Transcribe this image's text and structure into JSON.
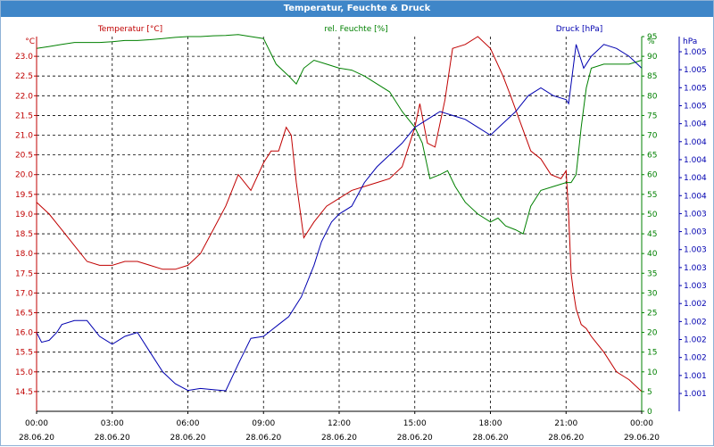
{
  "window": {
    "title": "Temperatur, Feuchte & Druck"
  },
  "chart_data": {
    "type": "line",
    "title": "Temperatur, Feuchte & Druck",
    "colors": {
      "temperature": "#c00000",
      "humidity": "#008000",
      "pressure": "#0000b0",
      "titlebar": "#3f86c8"
    },
    "grid": true,
    "x_ticks": [
      {
        "time": "00:00",
        "date": "28.06.20"
      },
      {
        "time": "03:00",
        "date": "28.06.20"
      },
      {
        "time": "06:00",
        "date": "28.06.20"
      },
      {
        "time": "09:00",
        "date": "28.06.20"
      },
      {
        "time": "12:00",
        "date": "28.06.20"
      },
      {
        "time": "15:00",
        "date": "28.06.20"
      },
      {
        "time": "18:00",
        "date": "28.06.20"
      },
      {
        "time": "21:00",
        "date": "28.06.20"
      },
      {
        "time": "00:00",
        "date": "29.06.20"
      }
    ],
    "x_range_hours": [
      0,
      24
    ],
    "axes": {
      "temperature": {
        "label": "Temperatur [°C]",
        "unit": "°C",
        "range": [
          14.0,
          23.5
        ],
        "ticks": [
          "14.5",
          "15.0",
          "15.5",
          "16.0",
          "16.5",
          "17.0",
          "17.5",
          "18.0",
          "18.5",
          "19.0",
          "19.5",
          "20.0",
          "20.5",
          "21.0",
          "21.5",
          "22.0",
          "22.5",
          "23.0"
        ]
      },
      "humidity": {
        "label": "rel. Feuchte [%]",
        "unit": "%",
        "range": [
          0,
          95
        ],
        "ticks": [
          "0",
          "5",
          "10",
          "15",
          "20",
          "25",
          "30",
          "35",
          "40",
          "45",
          "50",
          "55",
          "60",
          "65",
          "70",
          "75",
          "80",
          "85",
          "90",
          "95"
        ]
      },
      "pressure": {
        "label": "Druck [hPa]",
        "unit": "hPa",
        "ticks": [
          "1.005",
          "1.005",
          "1.005",
          "1.005",
          "1.004",
          "1.004",
          "1.004",
          "1.004",
          "1.004",
          "1.003",
          "1.003",
          "1.003",
          "1.003",
          "1.003",
          "1.002",
          "1.002",
          "1.002",
          "1.002",
          "1.001",
          "1.001"
        ]
      }
    },
    "series": [
      {
        "name": "Temperatur [°C]",
        "axis": "temperature",
        "x": [
          0,
          0.5,
          1,
          1.5,
          2,
          2.5,
          3,
          3.5,
          4,
          4.5,
          5,
          5.5,
          6,
          6.5,
          7,
          7.5,
          8,
          8.5,
          9,
          9.3,
          9.6,
          9.9,
          10.1,
          10.3,
          10.6,
          11,
          11.5,
          12,
          12.5,
          13,
          13.5,
          14,
          14.5,
          15,
          15.2,
          15.5,
          15.8,
          16.2,
          16.5,
          17,
          17.5,
          18,
          18.5,
          18.8,
          19.2,
          19.6,
          20,
          20.4,
          20.8,
          21,
          21.1,
          21.2,
          21.3,
          21.4,
          21.6,
          21.8,
          22,
          22.5,
          23,
          23.5,
          24
        ],
        "values": [
          19.3,
          19.0,
          18.6,
          18.2,
          17.8,
          17.7,
          17.7,
          17.8,
          17.8,
          17.7,
          17.6,
          17.6,
          17.7,
          18.0,
          18.6,
          19.2,
          20.0,
          19.6,
          20.3,
          20.6,
          20.6,
          21.2,
          21.0,
          19.8,
          18.4,
          18.8,
          19.2,
          19.4,
          19.6,
          19.7,
          19.8,
          19.9,
          20.2,
          21.2,
          21.8,
          20.8,
          20.7,
          21.9,
          23.2,
          23.3,
          23.5,
          23.2,
          22.5,
          22.0,
          21.3,
          20.6,
          20.4,
          20.0,
          19.9,
          20.1,
          19.0,
          17.5,
          17.0,
          16.6,
          16.2,
          16.1,
          15.9,
          15.5,
          15.0,
          14.8,
          14.5
        ]
      },
      {
        "name": "rel. Feuchte [%]",
        "axis": "humidity",
        "x": [
          0,
          0.5,
          1,
          1.5,
          2,
          2.5,
          3,
          3.5,
          4,
          4.5,
          5,
          5.5,
          6,
          6.5,
          7,
          7.5,
          8,
          8.5,
          9,
          9.5,
          10,
          10.3,
          10.6,
          11,
          11.5,
          12,
          12.5,
          13,
          13.5,
          14,
          14.5,
          15,
          15.3,
          15.6,
          16,
          16.3,
          16.6,
          17,
          17.5,
          18,
          18.3,
          18.6,
          19,
          19.3,
          19.6,
          20,
          20.5,
          21,
          21.2,
          21.4,
          21.6,
          21.8,
          22,
          22.5,
          23,
          23.5,
          24
        ],
        "values": [
          92,
          92.5,
          93,
          93.5,
          93.5,
          93.5,
          93.7,
          94,
          94,
          94.2,
          94.5,
          94.8,
          95,
          95,
          95.2,
          95.3,
          95.5,
          95,
          94.5,
          88,
          85,
          83,
          87,
          89,
          88,
          87,
          86.5,
          85,
          83,
          81,
          76,
          72,
          68,
          59,
          60,
          61,
          57,
          53,
          50,
          48,
          49,
          47,
          46,
          45,
          52,
          56,
          57,
          58,
          58,
          60,
          72,
          82,
          87,
          88,
          88,
          88,
          89
        ]
      },
      {
        "name": "Druck [hPa]",
        "axis": "pressure",
        "x": [
          0,
          0.2,
          0.5,
          0.8,
          1,
          1.5,
          2,
          2.5,
          3,
          3.5,
          4,
          4.5,
          5,
          5.5,
          6,
          6.5,
          7,
          7.5,
          8,
          8.5,
          9,
          9.3,
          9.6,
          10,
          10.5,
          11,
          11.3,
          11.7,
          12,
          12.5,
          13,
          13.5,
          14,
          14.5,
          15,
          15.5,
          16,
          16.5,
          17,
          17.5,
          18,
          18.5,
          19,
          19.5,
          20,
          20.5,
          21,
          21.1,
          21.2,
          21.4,
          21.7,
          22,
          22.5,
          23,
          23.5,
          24
        ],
        "values": [
          20,
          17.5,
          18,
          20,
          22,
          23,
          23,
          19,
          17,
          19,
          20,
          15,
          10,
          7,
          5.3,
          5.8,
          5.5,
          5.2,
          12,
          18.5,
          19,
          20.5,
          22,
          24,
          29,
          37,
          43,
          48,
          50,
          52,
          58,
          62,
          65,
          68,
          72,
          74,
          76,
          75,
          74,
          72,
          70,
          73,
          76,
          80,
          82,
          80,
          79,
          78,
          83,
          93,
          87,
          90,
          93,
          92,
          90,
          87
        ]
      }
    ]
  }
}
